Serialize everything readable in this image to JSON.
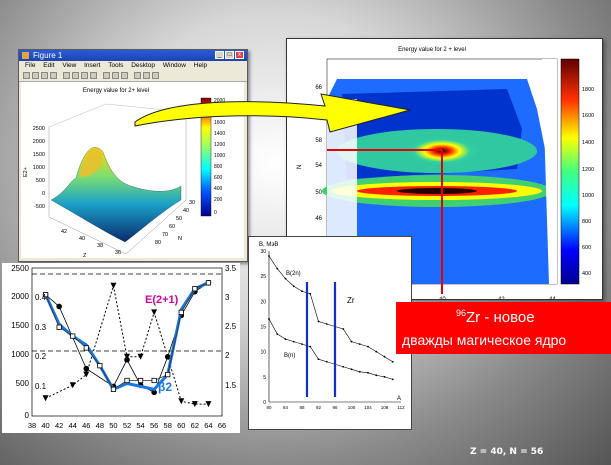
{
  "figure_window": {
    "title": "Figure 1",
    "menu": [
      "File",
      "Edit",
      "View",
      "Insert",
      "Tools",
      "Desktop",
      "Window",
      "Help"
    ],
    "plot_title": "Energy value for 2+ level",
    "z_label": "E2+",
    "n_label": "N",
    "x_label": "Z",
    "z_ticks": [
      "2500",
      "2000",
      "1500",
      "1000",
      "500",
      "0",
      "-500"
    ],
    "x_ticks": [
      "42",
      "40",
      "38",
      "36"
    ],
    "n_ticks": [
      "30",
      "40",
      "50",
      "60",
      "70",
      "80"
    ],
    "colorbar_ticks": [
      "2000",
      "1800",
      "1600",
      "1400",
      "1200",
      "1000",
      "800",
      "600",
      "400",
      "200",
      "0"
    ]
  },
  "heatmap": {
    "title": "Energy value for 2 + level",
    "y_label": "N",
    "y_ticks": [
      "66",
      "58",
      "54",
      "50",
      "46"
    ],
    "x_ticks": [
      "40",
      "42",
      "44"
    ],
    "colorbar_ticks": [
      "1800",
      "1600",
      "1400",
      "1200",
      "1000",
      "800",
      "600",
      "400"
    ]
  },
  "annotation": {
    "line1_mass": "96",
    "line1_text": "Zr - новое",
    "line2": "дважды магическое ядро"
  },
  "footer": {
    "zn": "Z = 40, N = 56"
  },
  "plot_middle": {
    "y_label": "B, MэB",
    "x_label": "A",
    "curve_upper_label": "B(2n)",
    "curve_lower_label": "B(n)",
    "element_label": "Zr",
    "y_ticks": [
      "30",
      "25",
      "20",
      "15",
      "10",
      "5",
      "0"
    ],
    "x_ticks": [
      "80",
      "84",
      "88",
      "92",
      "96",
      "100",
      "104",
      "108",
      "112"
    ]
  },
  "plot_left": {
    "e_label": "E(2+1)",
    "beta_label": "β2",
    "left_ticks": [
      "2500",
      "2000",
      "1500",
      "1000",
      "500",
      "0"
    ],
    "inner_ticks": [
      "0.4",
      "0.3",
      "0.2",
      "0.1"
    ],
    "right_ticks": [
      "3.5",
      "3",
      "2.5",
      "2",
      "1.5"
    ],
    "x_ticks": [
      "38",
      "40",
      "42",
      "44",
      "46",
      "48",
      "50",
      "52",
      "54",
      "56",
      "58",
      "60",
      "62",
      "64",
      "66"
    ]
  },
  "chart_data": [
    {
      "type": "line",
      "title": "",
      "xlabel": "A",
      "ylabel": "B, MэB",
      "xlim": [
        80,
        112
      ],
      "ylim": [
        0,
        30
      ],
      "series": [
        {
          "name": "B(2n)",
          "x": [
            80,
            82,
            84,
            86,
            88,
            90,
            92,
            94,
            96,
            98,
            100,
            102,
            104,
            106,
            108,
            110
          ],
          "values": [
            29,
            26.5,
            24.5,
            23,
            22,
            21.5,
            16,
            15.5,
            15,
            14.5,
            12,
            11.5,
            11,
            10,
            9,
            8
          ]
        },
        {
          "name": "B(n)",
          "x": [
            80,
            82,
            84,
            86,
            88,
            90,
            92,
            94,
            96,
            98,
            100,
            102,
            104,
            106,
            108,
            110
          ],
          "values": [
            16.5,
            13.5,
            12.5,
            12,
            11.5,
            11,
            8.5,
            8,
            7.5,
            7,
            6.5,
            6,
            5.8,
            5.3,
            5,
            4.5
          ]
        }
      ]
    },
    {
      "type": "line",
      "title": "",
      "xlabel": "",
      "ylabel": "",
      "xlim": [
        38,
        66
      ],
      "ylim": [
        0,
        2500
      ],
      "series": [
        {
          "name": "E(2+1)",
          "x": [
            40,
            44,
            46,
            50,
            52,
            54,
            56,
            60,
            62,
            64
          ],
          "values": [
            300,
            520,
            700,
            2200,
            1000,
            1000,
            1750,
            250,
            200,
            200
          ]
        },
        {
          "x": [
            40,
            42,
            46,
            50,
            52,
            54,
            56,
            58,
            60,
            62,
            64
          ],
          "values": [
            2050,
            1850,
            800,
            500,
            950,
            520,
            400,
            1000,
            1700,
            2100,
            2250
          ]
        },
        {
          "name": "β2",
          "x": [
            40,
            42,
            44,
            46,
            48,
            50,
            52,
            54,
            56,
            58,
            60,
            62,
            64
          ],
          "values": [
            2050,
            1550,
            1350,
            1200,
            850,
            450,
            550,
            500,
            450,
            700,
            1800,
            2150,
            2250
          ]
        },
        {
          "x": [
            40,
            42,
            44,
            46,
            48,
            50,
            52,
            54,
            56,
            58,
            60,
            62,
            64
          ],
          "values": [
            2050,
            1500,
            1350,
            1150,
            850,
            450,
            600,
            600,
            600,
            700,
            1750,
            2150,
            2250
          ]
        }
      ]
    }
  ]
}
